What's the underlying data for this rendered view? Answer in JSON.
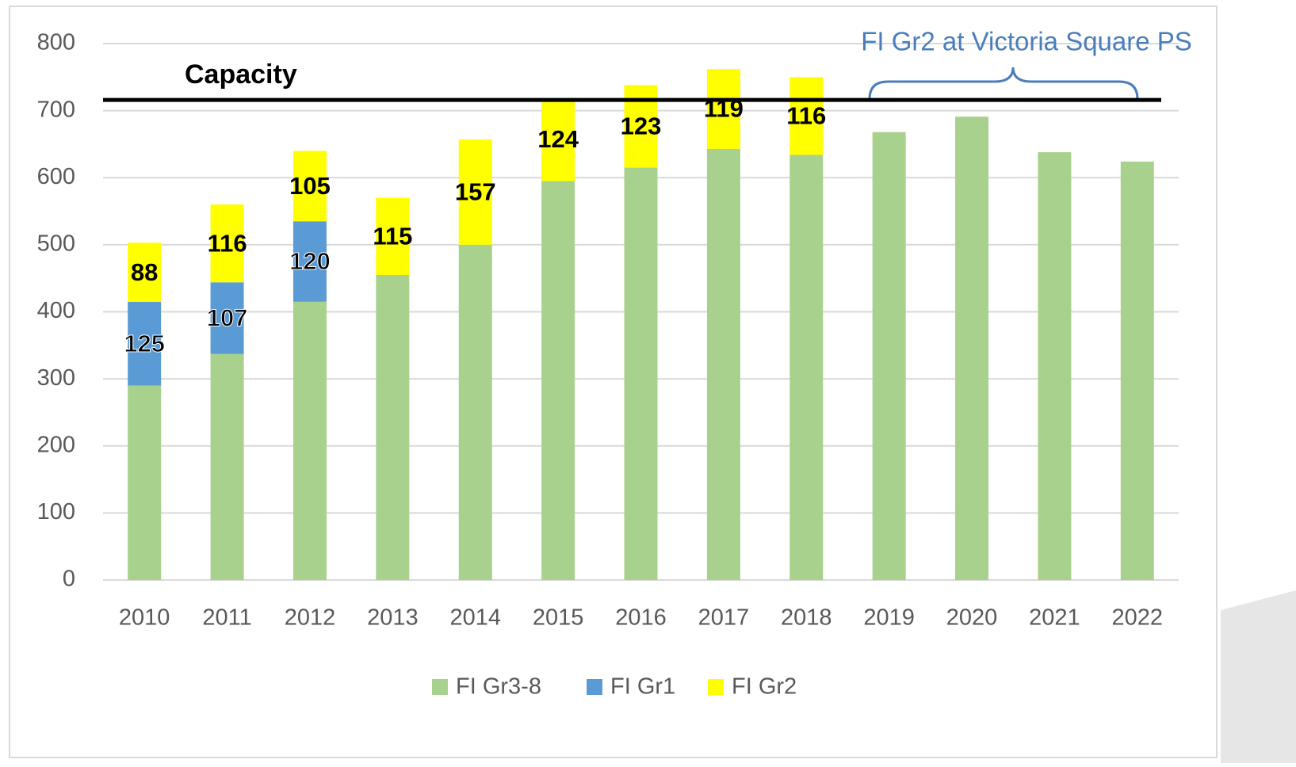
{
  "chart_data": {
    "type": "stacked_bar",
    "categories": [
      "2010",
      "2011",
      "2012",
      "2013",
      "2014",
      "2015",
      "2016",
      "2017",
      "2018",
      "2019",
      "2020",
      "2021",
      "2022"
    ],
    "series": [
      {
        "name": "FI Gr3-8",
        "color": "#a9d18e",
        "values": [
          290,
          337,
          415,
          455,
          500,
          595,
          615,
          643,
          634,
          668,
          691,
          638,
          624
        ]
      },
      {
        "name": "FI Gr1",
        "color": "#5b9bd5",
        "values": [
          125,
          107,
          120,
          null,
          null,
          null,
          null,
          null,
          null,
          null,
          null,
          null,
          null
        ]
      },
      {
        "name": "FI Gr2",
        "color": "#ffff00",
        "values": [
          88,
          116,
          105,
          115,
          157,
          124,
          123,
          119,
          116,
          null,
          null,
          null,
          null
        ]
      }
    ],
    "data_labels_series": [
      "FI Gr1",
      "FI Gr2"
    ],
    "ylim": [
      0,
      800
    ],
    "yticks": [
      0,
      100,
      200,
      300,
      400,
      500,
      600,
      700,
      800
    ],
    "grid": true,
    "capacity": {
      "label": "Capacity",
      "value": 716
    },
    "annotation": "FI Gr2 at Victoria Square PS",
    "legend": "bottom"
  }
}
